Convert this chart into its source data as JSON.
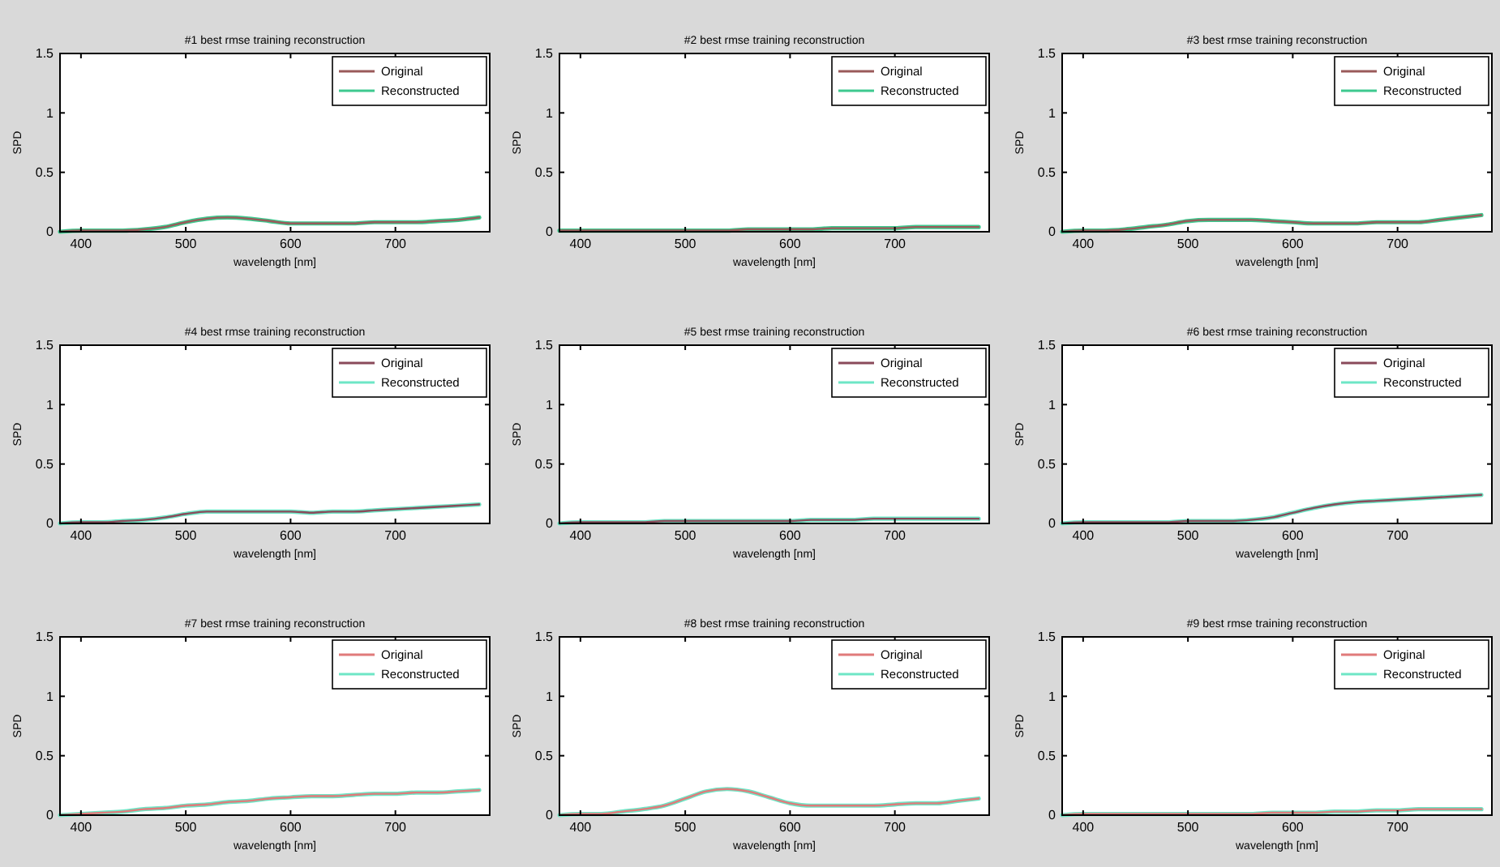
{
  "chart_data": [
    {
      "type": "line",
      "title": "#1 best rmse training reconstruction",
      "xlabel": "wavelength [nm]",
      "ylabel": "SPD",
      "xlim": [
        380,
        790
      ],
      "xticks": [
        400,
        500,
        600,
        700
      ],
      "ylim": [
        0,
        1.5
      ],
      "yticks": [
        0,
        0.5,
        1,
        1.5
      ],
      "legend": "top right",
      "grid": false,
      "x": [
        380,
        400,
        420,
        440,
        460,
        480,
        500,
        520,
        540,
        560,
        580,
        600,
        620,
        640,
        660,
        680,
        700,
        720,
        740,
        760,
        780
      ],
      "series": [
        {
          "name": "Original",
          "color": "#9a5a5a",
          "values": [
            0.0,
            0.01,
            0.01,
            0.01,
            0.02,
            0.04,
            0.08,
            0.11,
            0.12,
            0.11,
            0.09,
            0.07,
            0.07,
            0.07,
            0.07,
            0.08,
            0.08,
            0.08,
            0.09,
            0.1,
            0.12
          ]
        },
        {
          "name": "Reconstructed",
          "color": "#3ec98f",
          "values": [
            0.0,
            0.01,
            0.01,
            0.01,
            0.02,
            0.04,
            0.08,
            0.11,
            0.12,
            0.11,
            0.09,
            0.07,
            0.07,
            0.07,
            0.07,
            0.08,
            0.08,
            0.08,
            0.09,
            0.1,
            0.12
          ]
        }
      ]
    },
    {
      "type": "line",
      "title": "#2 best rmse training reconstruction",
      "xlabel": "wavelength [nm]",
      "ylabel": "SPD",
      "xlim": [
        380,
        790
      ],
      "xticks": [
        400,
        500,
        600,
        700
      ],
      "ylim": [
        0,
        1.5
      ],
      "yticks": [
        0,
        0.5,
        1,
        1.5
      ],
      "legend": "top right",
      "grid": false,
      "x": [
        380,
        400,
        420,
        440,
        460,
        480,
        500,
        520,
        540,
        560,
        580,
        600,
        620,
        640,
        660,
        680,
        700,
        720,
        740,
        760,
        780
      ],
      "series": [
        {
          "name": "Original",
          "color": "#9a5a5a",
          "values": [
            0.01,
            0.01,
            0.01,
            0.01,
            0.01,
            0.01,
            0.01,
            0.01,
            0.01,
            0.02,
            0.02,
            0.02,
            0.02,
            0.03,
            0.03,
            0.03,
            0.03,
            0.04,
            0.04,
            0.04,
            0.04
          ]
        },
        {
          "name": "Reconstructed",
          "color": "#3ec98f",
          "values": [
            0.01,
            0.01,
            0.01,
            0.01,
            0.01,
            0.01,
            0.01,
            0.01,
            0.01,
            0.02,
            0.02,
            0.02,
            0.02,
            0.03,
            0.03,
            0.03,
            0.03,
            0.04,
            0.04,
            0.04,
            0.04
          ]
        }
      ]
    },
    {
      "type": "line",
      "title": "#3 best rmse training reconstruction",
      "xlabel": "wavelength [nm]",
      "ylabel": "SPD",
      "xlim": [
        380,
        790
      ],
      "xticks": [
        400,
        500,
        600,
        700
      ],
      "ylim": [
        0,
        1.5
      ],
      "yticks": [
        0,
        0.5,
        1,
        1.5
      ],
      "legend": "top right",
      "grid": false,
      "x": [
        380,
        400,
        420,
        440,
        460,
        480,
        500,
        520,
        540,
        560,
        580,
        600,
        620,
        640,
        660,
        680,
        700,
        720,
        740,
        760,
        780
      ],
      "series": [
        {
          "name": "Original",
          "color": "#9a5a5a",
          "values": [
            0.0,
            0.01,
            0.01,
            0.02,
            0.04,
            0.06,
            0.09,
            0.1,
            0.1,
            0.1,
            0.09,
            0.08,
            0.07,
            0.07,
            0.07,
            0.08,
            0.08,
            0.08,
            0.1,
            0.12,
            0.14
          ]
        },
        {
          "name": "Reconstructed",
          "color": "#3ec98f",
          "values": [
            0.0,
            0.01,
            0.01,
            0.02,
            0.04,
            0.06,
            0.09,
            0.1,
            0.1,
            0.1,
            0.09,
            0.08,
            0.07,
            0.07,
            0.07,
            0.08,
            0.08,
            0.08,
            0.1,
            0.12,
            0.14
          ]
        }
      ]
    },
    {
      "type": "line",
      "title": "#4 best rmse training reconstruction",
      "xlabel": "wavelength [nm]",
      "ylabel": "SPD",
      "xlim": [
        380,
        790
      ],
      "xticks": [
        400,
        500,
        600,
        700
      ],
      "ylim": [
        0,
        1.5
      ],
      "yticks": [
        0,
        0.5,
        1,
        1.5
      ],
      "legend": "top right",
      "grid": false,
      "x": [
        380,
        400,
        420,
        440,
        460,
        480,
        500,
        520,
        540,
        560,
        580,
        600,
        620,
        640,
        660,
        680,
        700,
        720,
        740,
        760,
        780
      ],
      "series": [
        {
          "name": "Original",
          "color": "#8a4a5a",
          "values": [
            0.0,
            0.01,
            0.01,
            0.02,
            0.03,
            0.05,
            0.08,
            0.1,
            0.1,
            0.1,
            0.1,
            0.1,
            0.09,
            0.1,
            0.1,
            0.11,
            0.12,
            0.13,
            0.14,
            0.15,
            0.16
          ]
        },
        {
          "name": "Reconstructed",
          "color": "#6ee6c6",
          "values": [
            0.0,
            0.01,
            0.01,
            0.02,
            0.03,
            0.05,
            0.08,
            0.1,
            0.1,
            0.1,
            0.1,
            0.1,
            0.09,
            0.1,
            0.1,
            0.11,
            0.12,
            0.13,
            0.14,
            0.15,
            0.16
          ]
        }
      ]
    },
    {
      "type": "line",
      "title": "#5 best rmse training reconstruction",
      "xlabel": "wavelength [nm]",
      "ylabel": "SPD",
      "xlim": [
        380,
        790
      ],
      "xticks": [
        400,
        500,
        600,
        700
      ],
      "ylim": [
        0,
        1.5
      ],
      "yticks": [
        0,
        0.5,
        1,
        1.5
      ],
      "legend": "top right",
      "grid": false,
      "x": [
        380,
        400,
        420,
        440,
        460,
        480,
        500,
        520,
        540,
        560,
        580,
        600,
        620,
        640,
        660,
        680,
        700,
        720,
        740,
        760,
        780
      ],
      "series": [
        {
          "name": "Original",
          "color": "#8a4a5a",
          "values": [
            0.0,
            0.01,
            0.01,
            0.01,
            0.01,
            0.02,
            0.02,
            0.02,
            0.02,
            0.02,
            0.02,
            0.02,
            0.03,
            0.03,
            0.03,
            0.04,
            0.04,
            0.04,
            0.04,
            0.04,
            0.04
          ]
        },
        {
          "name": "Reconstructed",
          "color": "#6ee6c6",
          "values": [
            0.0,
            0.01,
            0.01,
            0.01,
            0.01,
            0.02,
            0.02,
            0.02,
            0.02,
            0.02,
            0.02,
            0.02,
            0.03,
            0.03,
            0.03,
            0.04,
            0.04,
            0.04,
            0.04,
            0.04,
            0.04
          ]
        }
      ]
    },
    {
      "type": "line",
      "title": "#6 best rmse training reconstruction",
      "xlabel": "wavelength [nm]",
      "ylabel": "SPD",
      "xlim": [
        380,
        790
      ],
      "xticks": [
        400,
        500,
        600,
        700
      ],
      "ylim": [
        0,
        1.5
      ],
      "yticks": [
        0,
        0.5,
        1,
        1.5
      ],
      "legend": "top right",
      "grid": false,
      "x": [
        380,
        400,
        420,
        440,
        460,
        480,
        500,
        520,
        540,
        560,
        580,
        600,
        620,
        640,
        660,
        680,
        700,
        720,
        740,
        760,
        780
      ],
      "series": [
        {
          "name": "Original",
          "color": "#8a4a5a",
          "values": [
            0.0,
            0.01,
            0.01,
            0.01,
            0.01,
            0.01,
            0.02,
            0.02,
            0.02,
            0.03,
            0.05,
            0.09,
            0.13,
            0.16,
            0.18,
            0.19,
            0.2,
            0.21,
            0.22,
            0.23,
            0.24
          ]
        },
        {
          "name": "Reconstructed",
          "color": "#6ee6c6",
          "values": [
            0.0,
            0.01,
            0.01,
            0.01,
            0.01,
            0.01,
            0.02,
            0.02,
            0.02,
            0.03,
            0.05,
            0.09,
            0.13,
            0.16,
            0.18,
            0.19,
            0.2,
            0.21,
            0.22,
            0.23,
            0.24
          ]
        }
      ]
    },
    {
      "type": "line",
      "title": "#7 best rmse training reconstruction",
      "xlabel": "wavelength [nm]",
      "ylabel": "SPD",
      "xlim": [
        380,
        790
      ],
      "xticks": [
        400,
        500,
        600,
        700
      ],
      "ylim": [
        0,
        1.5
      ],
      "yticks": [
        0,
        0.5,
        1,
        1.5
      ],
      "legend": "top right",
      "grid": false,
      "x": [
        380,
        400,
        420,
        440,
        460,
        480,
        500,
        520,
        540,
        560,
        580,
        600,
        620,
        640,
        660,
        680,
        700,
        720,
        740,
        760,
        780
      ],
      "series": [
        {
          "name": "Original",
          "color": "#e07a7a",
          "values": [
            0.0,
            0.01,
            0.02,
            0.03,
            0.05,
            0.06,
            0.08,
            0.09,
            0.11,
            0.12,
            0.14,
            0.15,
            0.16,
            0.16,
            0.17,
            0.18,
            0.18,
            0.19,
            0.19,
            0.2,
            0.21
          ]
        },
        {
          "name": "Reconstructed",
          "color": "#6ee6c6",
          "values": [
            0.0,
            0.01,
            0.02,
            0.03,
            0.05,
            0.06,
            0.08,
            0.09,
            0.11,
            0.12,
            0.14,
            0.15,
            0.16,
            0.16,
            0.17,
            0.18,
            0.18,
            0.19,
            0.19,
            0.2,
            0.21
          ]
        }
      ]
    },
    {
      "type": "line",
      "title": "#8 best rmse training reconstruction",
      "xlabel": "wavelength [nm]",
      "ylabel": "SPD",
      "xlim": [
        380,
        790
      ],
      "xticks": [
        400,
        500,
        600,
        700
      ],
      "ylim": [
        0,
        1.5
      ],
      "yticks": [
        0,
        0.5,
        1,
        1.5
      ],
      "legend": "top right",
      "grid": false,
      "x": [
        380,
        400,
        420,
        440,
        460,
        480,
        500,
        520,
        540,
        560,
        580,
        600,
        620,
        640,
        660,
        680,
        700,
        720,
        740,
        760,
        780
      ],
      "series": [
        {
          "name": "Original",
          "color": "#e07a7a",
          "values": [
            0.0,
            0.01,
            0.01,
            0.03,
            0.05,
            0.08,
            0.14,
            0.2,
            0.22,
            0.2,
            0.15,
            0.1,
            0.08,
            0.08,
            0.08,
            0.08,
            0.09,
            0.1,
            0.1,
            0.12,
            0.14
          ]
        },
        {
          "name": "Reconstructed",
          "color": "#6ee6c6",
          "values": [
            0.0,
            0.01,
            0.01,
            0.03,
            0.05,
            0.08,
            0.14,
            0.2,
            0.22,
            0.2,
            0.15,
            0.1,
            0.08,
            0.08,
            0.08,
            0.08,
            0.09,
            0.1,
            0.1,
            0.12,
            0.14
          ]
        }
      ]
    },
    {
      "type": "line",
      "title": "#9 best rmse training reconstruction",
      "xlabel": "wavelength [nm]",
      "ylabel": "SPD",
      "xlim": [
        380,
        790
      ],
      "xticks": [
        400,
        500,
        600,
        700
      ],
      "ylim": [
        0,
        1.5
      ],
      "yticks": [
        0,
        0.5,
        1,
        1.5
      ],
      "legend": "top right",
      "grid": false,
      "x": [
        380,
        400,
        420,
        440,
        460,
        480,
        500,
        520,
        540,
        560,
        580,
        600,
        620,
        640,
        660,
        680,
        700,
        720,
        740,
        760,
        780
      ],
      "series": [
        {
          "name": "Original",
          "color": "#e07a7a",
          "values": [
            0.0,
            0.01,
            0.01,
            0.01,
            0.01,
            0.01,
            0.01,
            0.01,
            0.01,
            0.01,
            0.02,
            0.02,
            0.02,
            0.03,
            0.03,
            0.04,
            0.04,
            0.05,
            0.05,
            0.05,
            0.05
          ]
        },
        {
          "name": "Reconstructed",
          "color": "#6ee6c6",
          "values": [
            0.0,
            0.01,
            0.01,
            0.01,
            0.01,
            0.01,
            0.01,
            0.01,
            0.01,
            0.01,
            0.02,
            0.02,
            0.02,
            0.03,
            0.03,
            0.04,
            0.04,
            0.05,
            0.05,
            0.05,
            0.05
          ]
        }
      ]
    }
  ]
}
